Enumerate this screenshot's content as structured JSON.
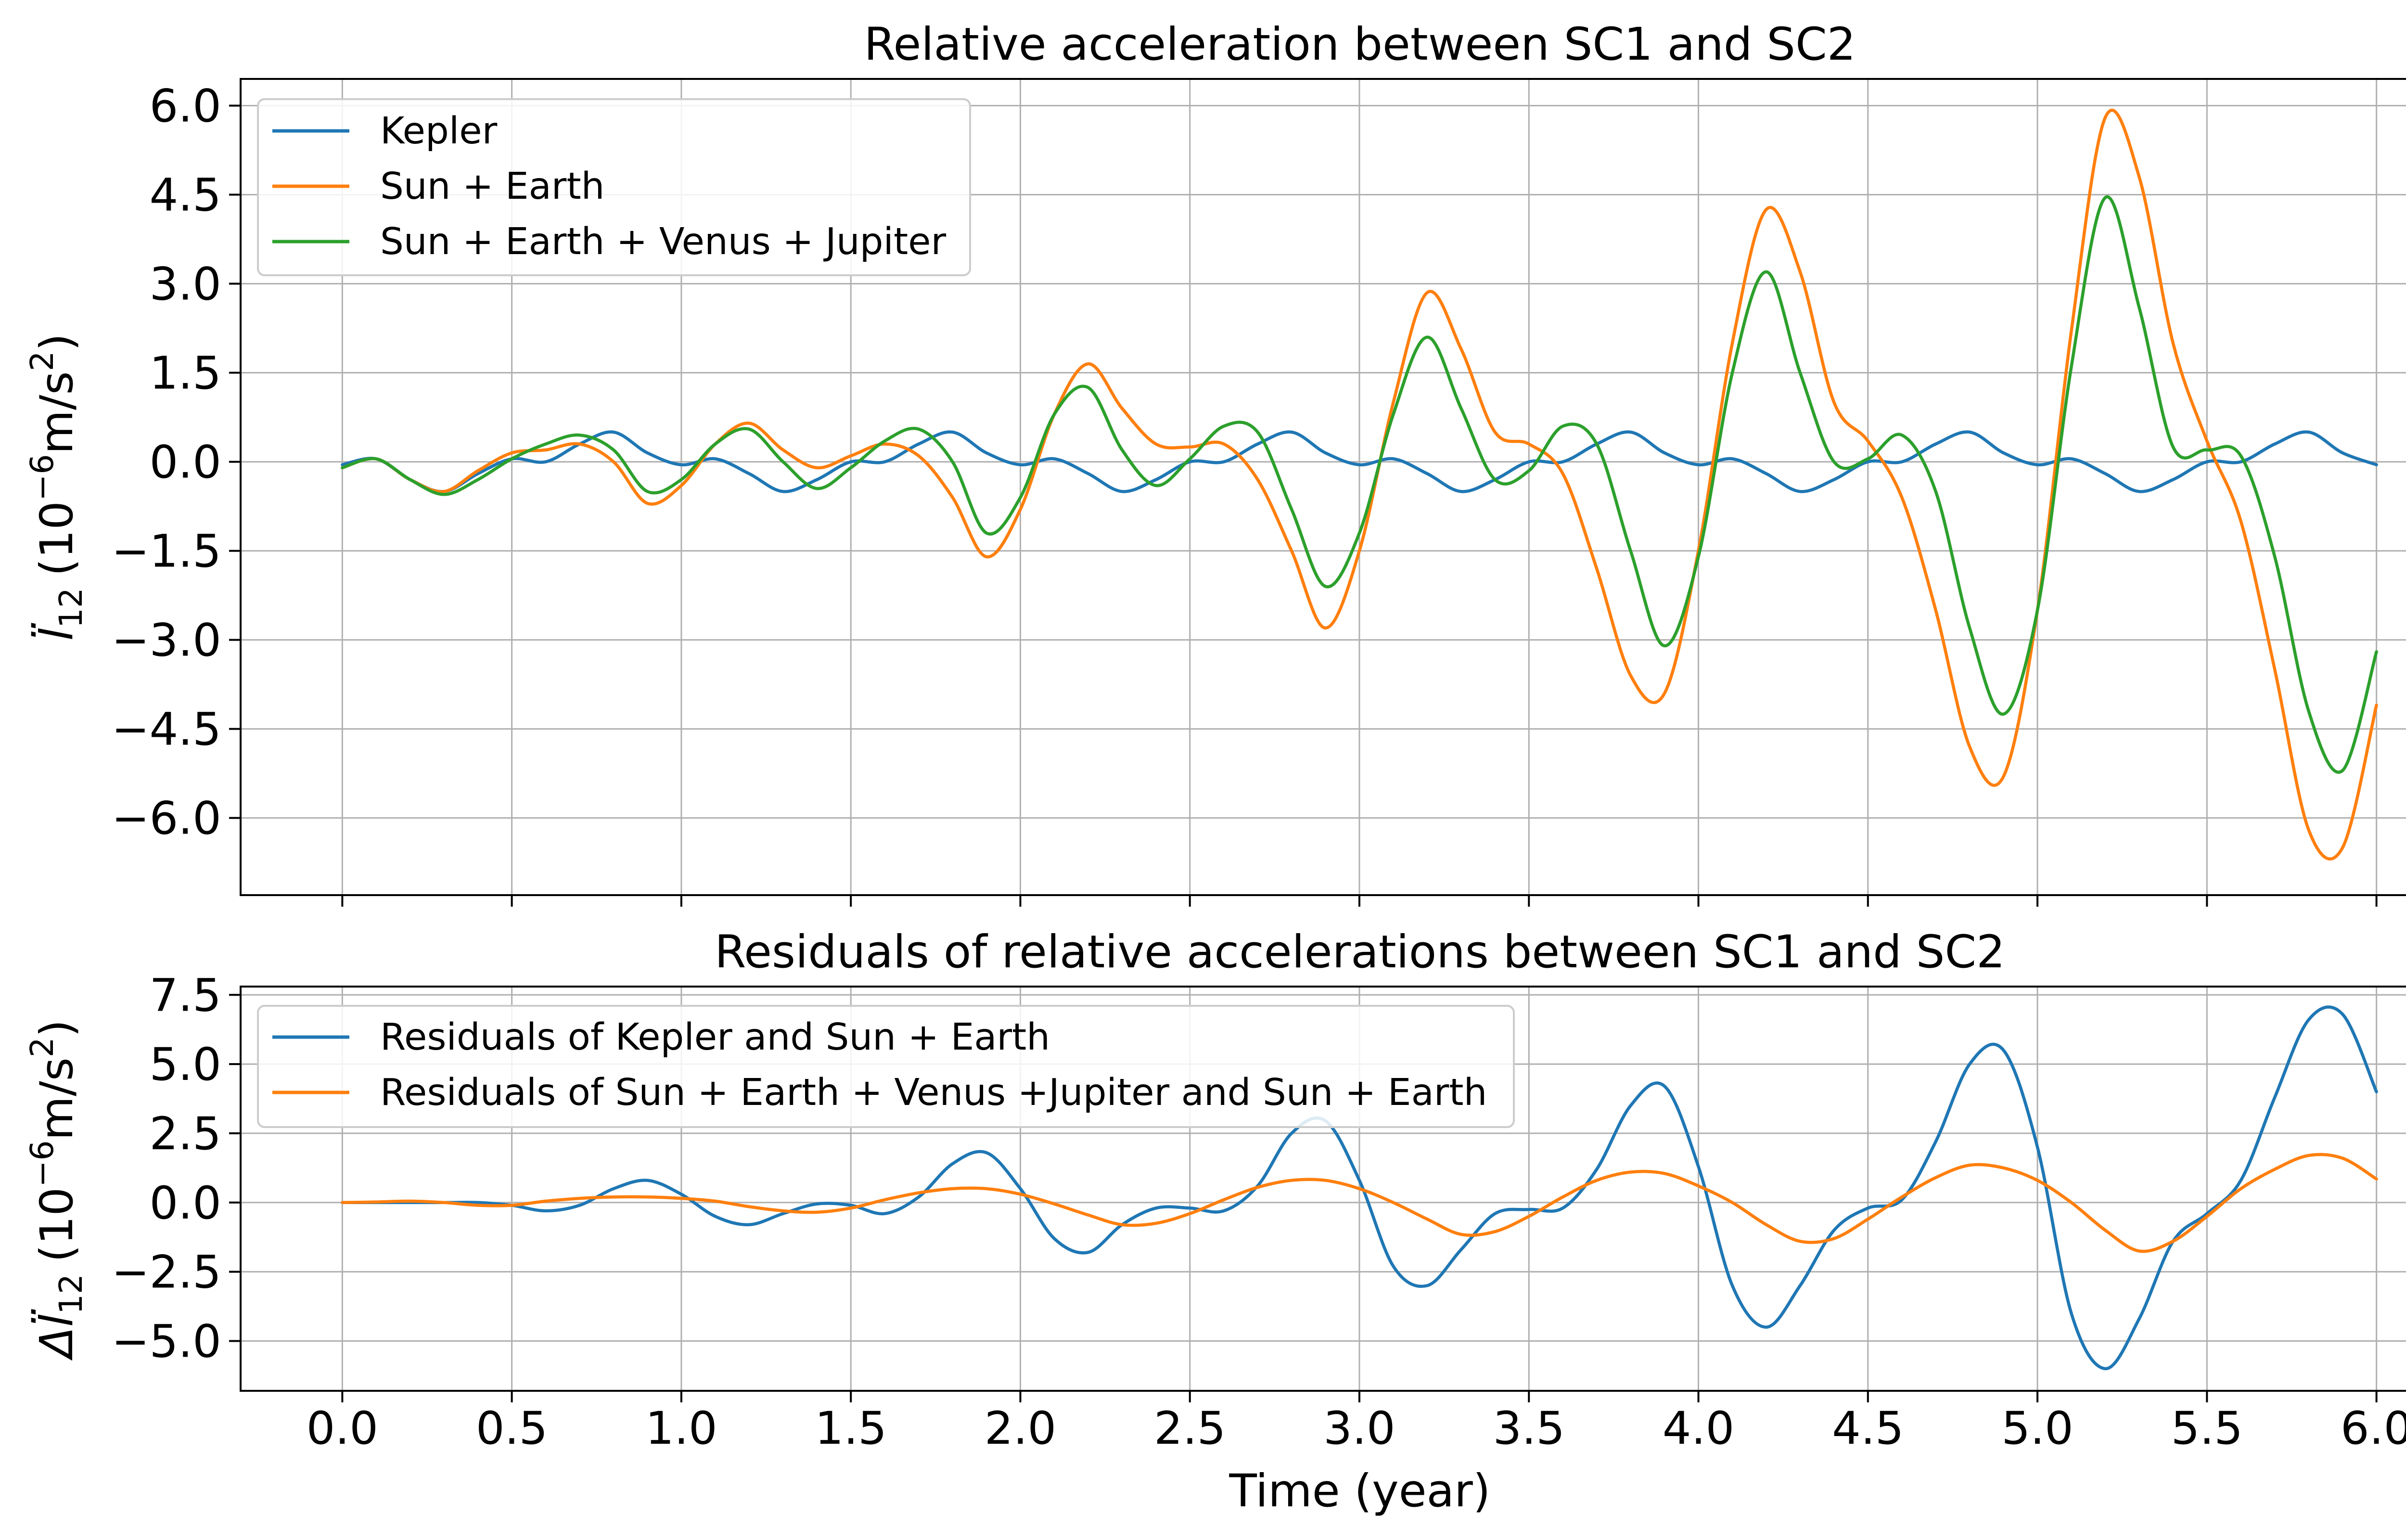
{
  "chart_data": [
    {
      "type": "line",
      "title": "Relative acceleration between SC1 and SC2",
      "xlabel": "",
      "ylabel_symbol": "l̈",
      "ylabel_sub": "12",
      "ylabel_unit_open": "(10",
      "ylabel_unit_exp": "−6",
      "ylabel_unit_mid": "m/s",
      "ylabel_unit_pow": "2",
      "ylabel_unit_close": ")",
      "xlim": [
        -0.3,
        6.3
      ],
      "ylim": [
        -7.3,
        6.45
      ],
      "x_ticks": [
        0.0,
        0.5,
        1.0,
        1.5,
        2.0,
        2.5,
        3.0,
        3.5,
        4.0,
        4.5,
        5.0,
        5.5,
        6.0
      ],
      "y_ticks": [
        6.0,
        4.5,
        3.0,
        1.5,
        0.0,
        -1.5,
        -3.0,
        -4.5,
        -6.0
      ],
      "y_tick_labels": [
        "6.0",
        "4.5",
        "3.0",
        "1.5",
        "0.0",
        "−1.5",
        "−3.0",
        "−4.5",
        "−6.0"
      ],
      "grid": true,
      "legend_position": "top-left",
      "series": [
        {
          "name": "Kepler",
          "color": "#1f77b4",
          "x": [
            0.0,
            0.1,
            0.2,
            0.3,
            0.4,
            0.5,
            0.6,
            0.7,
            0.8,
            0.9,
            1.0,
            1.1,
            1.2,
            1.3,
            1.4,
            1.5,
            1.6,
            1.7,
            1.8,
            1.9,
            2.0,
            2.1,
            2.2,
            2.3,
            2.4,
            2.5,
            2.6,
            2.7,
            2.8,
            2.9,
            3.0,
            3.1,
            3.2,
            3.3,
            3.4,
            3.5,
            3.6,
            3.7,
            3.8,
            3.9,
            4.0,
            4.1,
            4.2,
            4.3,
            4.4,
            4.5,
            4.6,
            4.7,
            4.8,
            4.9,
            5.0,
            5.1,
            5.2,
            5.3,
            5.4,
            5.5,
            5.6,
            5.7,
            5.8,
            5.9,
            6.0
          ],
          "y": [
            -0.05,
            0.05,
            -0.3,
            -0.5,
            -0.2,
            0.05,
            0.0,
            0.3,
            0.5,
            0.15,
            -0.05,
            0.05,
            -0.2,
            -0.5,
            -0.3,
            0.0,
            0.0,
            0.3,
            0.5,
            0.15,
            -0.05,
            0.05,
            -0.2,
            -0.5,
            -0.3,
            0.0,
            0.0,
            0.3,
            0.5,
            0.15,
            -0.05,
            0.05,
            -0.2,
            -0.5,
            -0.3,
            0.0,
            0.0,
            0.3,
            0.5,
            0.15,
            -0.05,
            0.05,
            -0.2,
            -0.5,
            -0.3,
            0.0,
            0.0,
            0.3,
            0.5,
            0.15,
            -0.05,
            0.05,
            -0.2,
            -0.5,
            -0.3,
            0.0,
            0.0,
            0.3,
            0.5,
            0.15,
            -0.05
          ]
        },
        {
          "name": "Sun + Earth",
          "color": "#ff7f0e",
          "x": [
            0.0,
            0.1,
            0.2,
            0.3,
            0.4,
            0.5,
            0.6,
            0.7,
            0.8,
            0.9,
            1.0,
            1.1,
            1.2,
            1.3,
            1.4,
            1.5,
            1.6,
            1.7,
            1.8,
            1.9,
            2.0,
            2.1,
            2.2,
            2.3,
            2.4,
            2.5,
            2.6,
            2.7,
            2.8,
            2.9,
            3.0,
            3.1,
            3.2,
            3.3,
            3.4,
            3.5,
            3.6,
            3.7,
            3.8,
            3.9,
            4.0,
            4.1,
            4.2,
            4.3,
            4.4,
            4.5,
            4.6,
            4.7,
            4.8,
            4.9,
            5.0,
            5.1,
            5.2,
            5.3,
            5.4,
            5.5,
            5.6,
            5.7,
            5.8,
            5.9,
            6.0
          ],
          "y": [
            -0.1,
            0.05,
            -0.3,
            -0.5,
            -0.15,
            0.15,
            0.2,
            0.3,
            0.0,
            -0.7,
            -0.4,
            0.3,
            0.65,
            0.2,
            -0.1,
            0.1,
            0.3,
            0.1,
            -0.6,
            -1.6,
            -0.8,
            0.8,
            1.65,
            0.9,
            0.3,
            0.25,
            0.3,
            -0.3,
            -1.5,
            -2.8,
            -1.5,
            1.0,
            2.85,
            1.9,
            0.5,
            0.3,
            -0.2,
            -1.8,
            -3.6,
            -3.9,
            -1.5,
            2.0,
            4.25,
            3.2,
            1.0,
            0.35,
            -0.6,
            -2.5,
            -4.8,
            -5.3,
            -2.5,
            2.2,
            5.8,
            4.8,
            2.0,
            0.35,
            -1.0,
            -3.5,
            -6.2,
            -6.5,
            -4.1
          ]
        },
        {
          "name": "Sun + Earth + Venus + Jupiter",
          "color": "#2ca02c",
          "x": [
            0.0,
            0.1,
            0.2,
            0.3,
            0.4,
            0.5,
            0.6,
            0.7,
            0.8,
            0.9,
            1.0,
            1.1,
            1.2,
            1.3,
            1.4,
            1.5,
            1.6,
            1.7,
            1.8,
            1.9,
            2.0,
            2.1,
            2.2,
            2.3,
            2.4,
            2.5,
            2.6,
            2.7,
            2.8,
            2.9,
            3.0,
            3.1,
            3.2,
            3.3,
            3.4,
            3.5,
            3.6,
            3.7,
            3.8,
            3.9,
            4.0,
            4.1,
            4.2,
            4.3,
            4.4,
            4.5,
            4.6,
            4.7,
            4.8,
            4.9,
            5.0,
            5.1,
            5.2,
            5.3,
            5.4,
            5.5,
            5.6,
            5.7,
            5.8,
            5.9,
            6.0
          ],
          "y": [
            -0.1,
            0.05,
            -0.3,
            -0.55,
            -0.3,
            0.05,
            0.3,
            0.45,
            0.2,
            -0.5,
            -0.3,
            0.3,
            0.55,
            0.0,
            -0.45,
            -0.1,
            0.35,
            0.55,
            0.0,
            -1.2,
            -0.6,
            0.8,
            1.25,
            0.2,
            -0.4,
            0.05,
            0.6,
            0.5,
            -0.8,
            -2.1,
            -1.2,
            0.8,
            2.1,
            0.9,
            -0.3,
            -0.15,
            0.6,
            0.3,
            -1.5,
            -3.1,
            -1.6,
            1.5,
            3.2,
            1.5,
            0.0,
            0.05,
            0.45,
            -0.5,
            -2.8,
            -4.25,
            -2.5,
            1.6,
            4.45,
            2.6,
            0.25,
            0.2,
            0.1,
            -1.6,
            -4.2,
            -5.2,
            -3.2
          ]
        }
      ]
    },
    {
      "type": "line",
      "title": "Residuals of relative accelerations between SC1 and SC2",
      "xlabel": "Time (year)",
      "ylabel_symbol": "Δl̈",
      "ylabel_sub": "12",
      "ylabel_unit_open": "(10",
      "ylabel_unit_exp": "−6",
      "ylabel_unit_mid": "m/s",
      "ylabel_unit_pow": "2",
      "ylabel_unit_close": ")",
      "xlim": [
        -0.3,
        6.3
      ],
      "ylim": [
        -6.8,
        7.8
      ],
      "x_ticks": [
        0.0,
        0.5,
        1.0,
        1.5,
        2.0,
        2.5,
        3.0,
        3.5,
        4.0,
        4.5,
        5.0,
        5.5,
        6.0
      ],
      "x_tick_labels": [
        "0.0",
        "0.5",
        "1.0",
        "1.5",
        "2.0",
        "2.5",
        "3.0",
        "3.5",
        "4.0",
        "4.5",
        "5.0",
        "5.5",
        "6.0"
      ],
      "y_ticks": [
        7.5,
        5.0,
        2.5,
        0.0,
        -2.5,
        -5.0
      ],
      "y_tick_labels": [
        "7.5",
        "5.0",
        "2.5",
        "0.0",
        "−2.5",
        "−5.0"
      ],
      "grid": true,
      "legend_position": "top-left",
      "series": [
        {
          "name": "Residuals of Kepler and Sun + Earth",
          "color": "#1f77b4",
          "x": [
            0.0,
            0.1,
            0.2,
            0.3,
            0.4,
            0.5,
            0.6,
            0.7,
            0.8,
            0.9,
            1.0,
            1.1,
            1.2,
            1.3,
            1.4,
            1.5,
            1.6,
            1.7,
            1.8,
            1.9,
            2.0,
            2.1,
            2.2,
            2.3,
            2.4,
            2.5,
            2.6,
            2.7,
            2.8,
            2.9,
            3.0,
            3.1,
            3.2,
            3.3,
            3.4,
            3.5,
            3.6,
            3.7,
            3.8,
            3.9,
            4.0,
            4.1,
            4.2,
            4.3,
            4.4,
            4.5,
            4.6,
            4.7,
            4.8,
            4.9,
            5.0,
            5.1,
            5.2,
            5.3,
            5.4,
            5.5,
            5.6,
            5.7,
            5.8,
            5.9,
            6.0
          ],
          "y": [
            0.0,
            0.0,
            0.0,
            0.0,
            0.0,
            -0.1,
            -0.3,
            -0.1,
            0.5,
            0.8,
            0.3,
            -0.5,
            -0.8,
            -0.4,
            -0.05,
            -0.1,
            -0.4,
            0.2,
            1.4,
            1.8,
            0.5,
            -1.3,
            -1.8,
            -0.8,
            -0.2,
            -0.2,
            -0.3,
            0.6,
            2.5,
            2.95,
            0.8,
            -2.3,
            -3.0,
            -1.7,
            -0.4,
            -0.25,
            -0.2,
            1.2,
            3.5,
            4.2,
            1.3,
            -3.0,
            -4.5,
            -3.0,
            -1.0,
            -0.2,
            0.1,
            2.2,
            5.0,
            5.5,
            2.0,
            -4.0,
            -6.0,
            -4.2,
            -1.4,
            -0.4,
            0.8,
            3.8,
            6.6,
            6.8,
            4.0
          ]
        },
        {
          "name": "Residuals of Sun + Earth + Venus +Jupiter and Sun + Earth",
          "color": "#ff7f0e",
          "x": [
            0.0,
            0.1,
            0.2,
            0.3,
            0.4,
            0.5,
            0.6,
            0.7,
            0.8,
            0.9,
            1.0,
            1.1,
            1.2,
            1.3,
            1.4,
            1.5,
            1.6,
            1.7,
            1.8,
            1.9,
            2.0,
            2.1,
            2.2,
            2.3,
            2.4,
            2.5,
            2.6,
            2.7,
            2.8,
            2.9,
            3.0,
            3.1,
            3.2,
            3.3,
            3.4,
            3.5,
            3.6,
            3.7,
            3.8,
            3.9,
            4.0,
            4.1,
            4.2,
            4.3,
            4.4,
            4.5,
            4.6,
            4.7,
            4.8,
            4.9,
            5.0,
            5.1,
            5.2,
            5.3,
            5.4,
            5.5,
            5.6,
            5.7,
            5.8,
            5.9,
            6.0
          ],
          "y": [
            0.0,
            0.02,
            0.05,
            0.0,
            -0.1,
            -0.1,
            0.05,
            0.15,
            0.2,
            0.2,
            0.15,
            0.05,
            -0.15,
            -0.3,
            -0.35,
            -0.2,
            0.1,
            0.35,
            0.5,
            0.5,
            0.3,
            -0.05,
            -0.45,
            -0.8,
            -0.75,
            -0.4,
            0.1,
            0.55,
            0.8,
            0.8,
            0.5,
            0.0,
            -0.6,
            -1.15,
            -1.05,
            -0.5,
            0.2,
            0.8,
            1.1,
            1.05,
            0.6,
            0.0,
            -0.8,
            -1.4,
            -1.3,
            -0.6,
            0.2,
            0.9,
            1.35,
            1.25,
            0.8,
            0.0,
            -1.0,
            -1.75,
            -1.4,
            -0.5,
            0.5,
            1.2,
            1.7,
            1.6,
            0.85
          ]
        }
      ]
    }
  ]
}
